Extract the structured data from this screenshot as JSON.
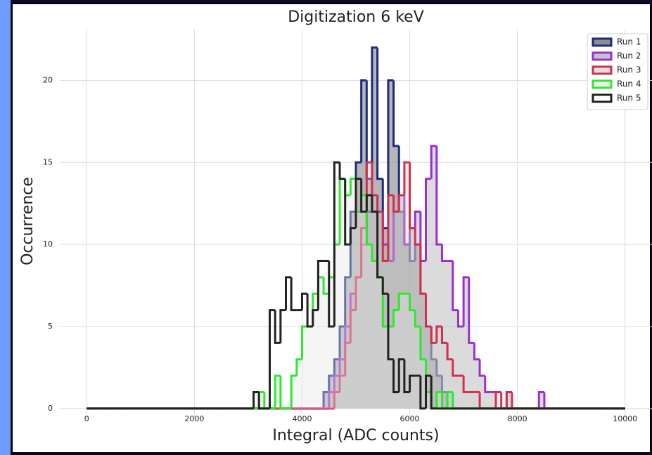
{
  "chart_data": {
    "type": "histogram",
    "title": "Digitization 6 keV",
    "x_label": "Integral (ADC counts)",
    "y_label": "Occurrence",
    "bins": [
      0,
      100,
      200,
      300,
      400,
      500,
      600,
      700,
      800,
      900,
      1000,
      1100,
      1200,
      1300,
      1400,
      1500,
      1600,
      1700,
      1800,
      1900,
      2000,
      2100,
      2200,
      2300,
      2400,
      2500,
      2600,
      2700,
      2800,
      2900,
      3000,
      3100,
      3200,
      3300,
      3400,
      3500,
      3600,
      3700,
      3800,
      3900,
      4000,
      4100,
      4200,
      4300,
      4400,
      4500,
      4600,
      4700,
      4800,
      4900,
      5000,
      5100,
      5200,
      5300,
      5400,
      5500,
      5600,
      5700,
      5800,
      5900,
      6000,
      6100,
      6200,
      6300,
      6400,
      6500,
      6600,
      6700,
      6800,
      6900,
      7000,
      7100,
      7200,
      7300,
      7400,
      7500,
      7600,
      7700,
      7800,
      7900,
      8000,
      8100,
      8200,
      8300,
      8400,
      8500,
      8600,
      8700,
      8800,
      8900,
      9000,
      9100,
      9200,
      9300,
      9400,
      9500,
      9600,
      9700,
      9800,
      9900,
      10000
    ],
    "series": [
      {
        "name": "Run 1",
        "color": "#1c2a80",
        "fill_color": "#7a7a7a",
        "fill_opacity": 0.55,
        "values": [
          0,
          0,
          0,
          0,
          0,
          0,
          0,
          0,
          0,
          0,
          0,
          0,
          0,
          0,
          0,
          0,
          0,
          0,
          0,
          0,
          0,
          0,
          0,
          0,
          0,
          0,
          0,
          0,
          0,
          0,
          0,
          0,
          0,
          0,
          0,
          0,
          0,
          0,
          0,
          0,
          0,
          0,
          0,
          0,
          1,
          2,
          3,
          5,
          8,
          12,
          15,
          20,
          14,
          22,
          14,
          11,
          20,
          16,
          12,
          10,
          9,
          10,
          7,
          5,
          3,
          2,
          1,
          1,
          0,
          0,
          0,
          0,
          0,
          0,
          0,
          0,
          0,
          0,
          0,
          0,
          0,
          0,
          0,
          0,
          0,
          0,
          0,
          0,
          0,
          0,
          0,
          0,
          0,
          0,
          0,
          0,
          0,
          0,
          0,
          0
        ]
      },
      {
        "name": "Run 2",
        "color": "#9b2fcf",
        "fill_color": "#b0b0b0",
        "fill_opacity": 0.45,
        "values": [
          0,
          0,
          0,
          0,
          0,
          0,
          0,
          0,
          0,
          0,
          0,
          0,
          0,
          0,
          0,
          0,
          0,
          0,
          0,
          0,
          0,
          0,
          0,
          0,
          0,
          0,
          0,
          0,
          0,
          0,
          0,
          0,
          0,
          0,
          0,
          0,
          0,
          0,
          0,
          0,
          0,
          0,
          0,
          0,
          0,
          1,
          2,
          3,
          5,
          7,
          8,
          10,
          12,
          13,
          12,
          10,
          9,
          12,
          13,
          10,
          11,
          12,
          9,
          14,
          16,
          10,
          9,
          9,
          6,
          5,
          8,
          4,
          3,
          2,
          1,
          1,
          0,
          0,
          1,
          0,
          0,
          0,
          0,
          0,
          1,
          0,
          0,
          0,
          0,
          0,
          0,
          0,
          0,
          0,
          0,
          0,
          0,
          0,
          0,
          0
        ]
      },
      {
        "name": "Run 3",
        "color": "#d22f50",
        "fill_color": "#d0d0d0",
        "fill_opacity": 0.35,
        "values": [
          0,
          0,
          0,
          0,
          0,
          0,
          0,
          0,
          0,
          0,
          0,
          0,
          0,
          0,
          0,
          0,
          0,
          0,
          0,
          0,
          0,
          0,
          0,
          0,
          0,
          0,
          0,
          0,
          0,
          0,
          0,
          0,
          0,
          0,
          0,
          0,
          0,
          0,
          0,
          0,
          0,
          0,
          0,
          0,
          0,
          0,
          1,
          2,
          4,
          6,
          8,
          11,
          15,
          13,
          12,
          9,
          13,
          12,
          13,
          15,
          11,
          10,
          7,
          5,
          4,
          5,
          4,
          3,
          2,
          2,
          1,
          1,
          1,
          0,
          0,
          0,
          1,
          0,
          1,
          0,
          0,
          0,
          0,
          0,
          0,
          0,
          0,
          0,
          0,
          0,
          0,
          0,
          0,
          0,
          0,
          0,
          0,
          0,
          0,
          0
        ]
      },
      {
        "name": "Run 4",
        "color": "#2ee82e",
        "fill_color": "#e6e6e6",
        "fill_opacity": 0.4,
        "values": [
          0,
          0,
          0,
          0,
          0,
          0,
          0,
          0,
          0,
          0,
          0,
          0,
          0,
          0,
          0,
          0,
          0,
          0,
          0,
          0,
          0,
          0,
          0,
          0,
          0,
          0,
          0,
          0,
          0,
          0,
          0,
          0,
          1,
          0,
          0,
          2,
          0,
          0,
          2,
          3,
          5,
          5,
          7,
          8,
          7,
          8,
          10,
          14,
          13,
          14,
          12,
          13,
          10,
          9,
          8,
          5,
          5,
          6,
          7,
          7,
          6,
          5,
          3,
          1,
          0,
          1,
          0,
          1,
          0,
          0,
          0,
          0,
          0,
          0,
          0,
          0,
          0,
          0,
          0,
          0,
          0,
          0,
          0,
          0,
          0,
          0,
          0,
          0,
          0,
          0,
          0,
          0,
          0,
          0,
          0,
          0,
          0,
          0,
          0,
          0
        ]
      },
      {
        "name": "Run 5",
        "color": "#222222",
        "fill_color": "none",
        "fill_opacity": 0,
        "values": [
          0,
          0,
          0,
          0,
          0,
          0,
          0,
          0,
          0,
          0,
          0,
          0,
          0,
          0,
          0,
          0,
          0,
          0,
          0,
          0,
          0,
          0,
          0,
          0,
          0,
          0,
          0,
          0,
          0,
          0,
          0,
          1,
          0,
          0,
          6,
          4,
          6,
          8,
          6,
          6,
          7,
          5,
          6,
          9,
          9,
          5,
          15,
          14,
          10,
          11,
          14,
          12,
          13,
          12,
          8,
          7,
          3,
          1,
          3,
          1,
          2,
          2,
          0,
          2,
          0,
          0,
          0,
          0,
          0,
          0,
          0,
          0,
          0,
          0,
          0,
          0,
          0,
          0,
          0,
          0,
          0,
          0,
          0,
          0,
          0,
          0,
          0,
          0,
          0,
          0,
          0,
          0,
          0,
          0,
          0,
          0,
          0,
          0,
          0,
          0
        ]
      }
    ],
    "xlim": [
      -500,
      10500
    ],
    "ylim": [
      -0.65,
      23.1
    ],
    "xticks": [
      0,
      2000,
      4000,
      6000,
      8000,
      10000
    ],
    "yticks": [
      0,
      5,
      10,
      15,
      20
    ],
    "grid": true,
    "legend": "upper right"
  }
}
